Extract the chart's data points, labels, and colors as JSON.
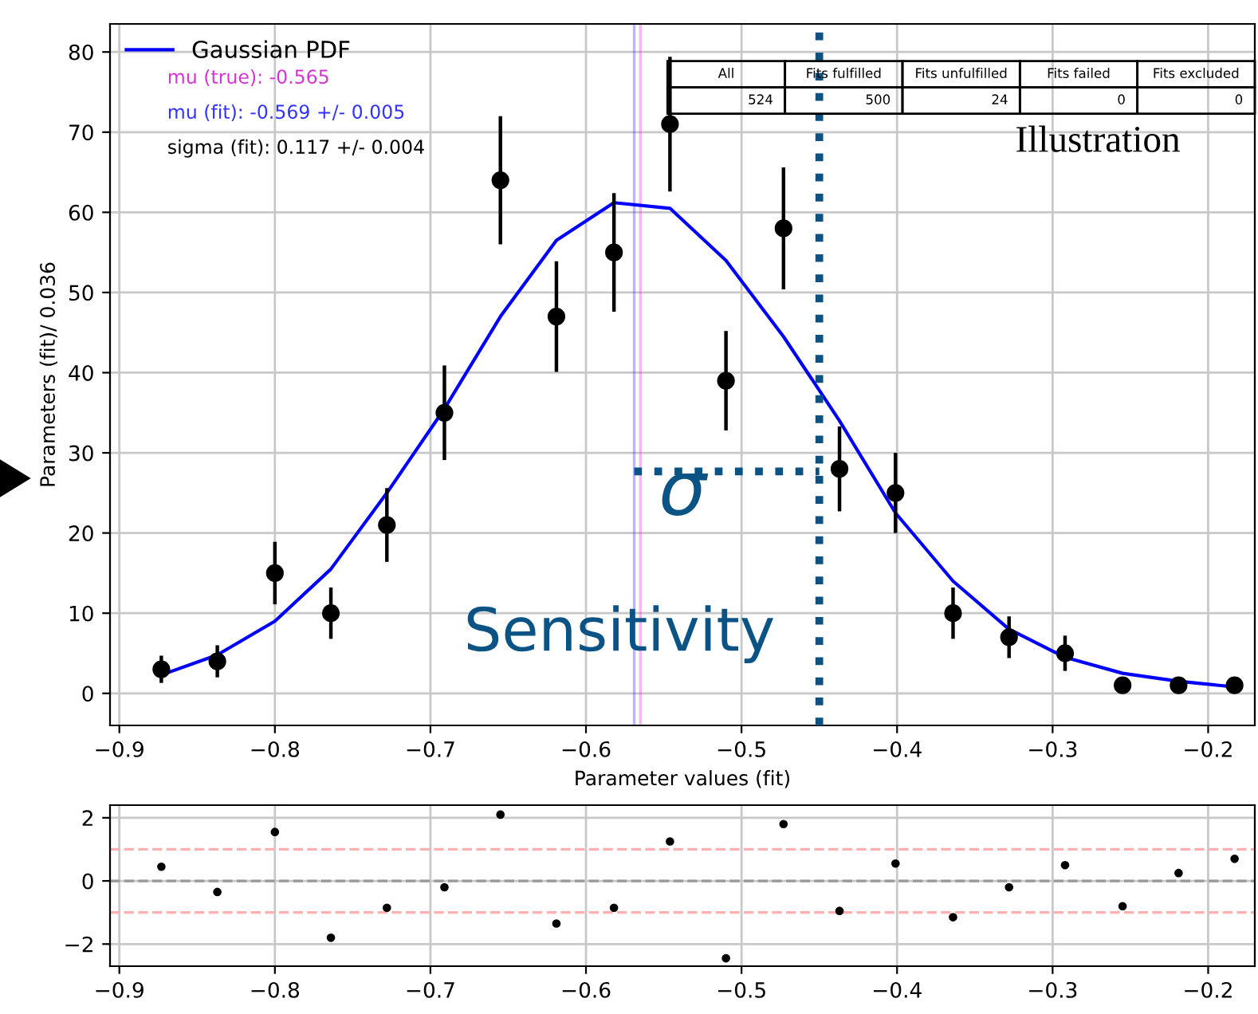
{
  "chart_data": [
    {
      "type": "scatter",
      "xlabel": "Parameter values (fit)",
      "ylabel": "Parameters (fit)/ 0.036",
      "x": [
        -0.873,
        -0.837,
        -0.8,
        -0.764,
        -0.728,
        -0.691,
        -0.655,
        -0.619,
        -0.582,
        -0.546,
        -0.51,
        -0.473,
        -0.437,
        -0.401,
        -0.364,
        -0.328,
        -0.292,
        -0.255,
        -0.219,
        -0.183
      ],
      "series": [
        {
          "type": "scatter",
          "color": "#000000",
          "marker": "circle",
          "values": [
            3,
            4,
            15,
            10,
            21,
            35,
            64,
            47,
            55,
            71,
            39,
            58,
            28,
            25,
            10,
            7,
            5,
            1,
            1,
            1
          ],
          "errors": [
            1.7,
            2,
            3.9,
            3.2,
            4.6,
            5.9,
            8,
            6.9,
            7.4,
            8.4,
            6.2,
            7.6,
            5.3,
            5,
            3.2,
            2.6,
            2.2,
            1,
            1,
            1
          ]
        },
        {
          "type": "line",
          "name": "Gaussian PDF",
          "color": "#0000ff",
          "values": [
            2.3,
            4.8,
            9,
            15.5,
            25,
            35.5,
            47,
            56.5,
            61.2,
            60.5,
            54,
            44.5,
            34,
            22.5,
            14,
            8,
            4.5,
            2.5,
            1.5,
            0.8
          ]
        }
      ],
      "xlim": [
        -0.906,
        -0.17
      ],
      "ylim": [
        -4,
        83.5
      ],
      "xticks": [
        {
          "value": -0.9,
          "label": "−0.9"
        },
        {
          "value": -0.8,
          "label": "−0.8"
        },
        {
          "value": -0.7,
          "label": "−0.7"
        },
        {
          "value": -0.6,
          "label": "−0.6"
        },
        {
          "value": -0.5,
          "label": "−0.5"
        },
        {
          "value": -0.4,
          "label": "−0.4"
        },
        {
          "value": -0.3,
          "label": "−0.3"
        },
        {
          "value": -0.2,
          "label": "−0.2"
        }
      ],
      "yticks": [
        0,
        10,
        20,
        30,
        40,
        50,
        60,
        70,
        80
      ],
      "grid": true,
      "legend": "top left",
      "ref_lines": [
        {
          "axis": "x",
          "value": -0.565,
          "label": "mu (true): -0.565",
          "color": "#d633d6"
        },
        {
          "axis": "x",
          "value": -0.569,
          "label": "mu (fit): -0.569 +/- 0.005",
          "color": "#3333ff"
        },
        {
          "axis": "x",
          "value": -0.45,
          "color": "#0b5385",
          "line_style": "dotted"
        }
      ],
      "annotations": [
        "sigma (fit): 0.117 +/- 0.004",
        "All",
        "Fits fulfilled",
        "Fits unfulfilled",
        "Fits failed",
        "Fits excluded",
        "524",
        "500",
        "24",
        "0",
        "0",
        "Illustration",
        "σ",
        "Sensitivity"
      ]
    },
    {
      "type": "scatter",
      "x": [
        -0.873,
        -0.837,
        -0.8,
        -0.764,
        -0.728,
        -0.691,
        -0.655,
        -0.619,
        -0.582,
        -0.546,
        -0.51,
        -0.473,
        -0.437,
        -0.401,
        -0.364,
        -0.328,
        -0.292,
        -0.255,
        -0.219,
        -0.183
      ],
      "series": [
        {
          "color": "#000000",
          "values": [
            0.45,
            -0.35,
            1.55,
            -1.8,
            -0.85,
            -0.2,
            2.1,
            -1.35,
            -0.85,
            1.25,
            -2.45,
            1.8,
            -0.95,
            0.55,
            -1.15,
            -0.2,
            0.5,
            -0.8,
            0.25,
            0.7
          ]
        }
      ],
      "xlim": [
        -0.906,
        -0.17
      ],
      "ylim": [
        -2.7,
        2.4
      ],
      "xticks": [
        {
          "value": -0.9,
          "label": "−0.9"
        },
        {
          "value": -0.8,
          "label": "−0.8"
        },
        {
          "value": -0.7,
          "label": "−0.7"
        },
        {
          "value": -0.6,
          "label": "−0.6"
        },
        {
          "value": -0.5,
          "label": "−0.5"
        },
        {
          "value": -0.4,
          "label": "−0.4"
        },
        {
          "value": -0.3,
          "label": "−0.3"
        },
        {
          "value": -0.2,
          "label": "−0.2"
        }
      ],
      "yticks": [
        {
          "value": -2,
          "label": "−2"
        },
        0,
        2
      ],
      "grid": true,
      "ref_lines": [
        {
          "axis": "y",
          "value": 0,
          "color": "#999999",
          "line_style": "dashed"
        },
        {
          "axis": "y",
          "value": 1,
          "color": "#ffb0b0",
          "line_style": "dashed"
        },
        {
          "axis": "y",
          "value": -1,
          "color": "#ffb0b0",
          "line_style": "dashed"
        }
      ]
    }
  ]
}
